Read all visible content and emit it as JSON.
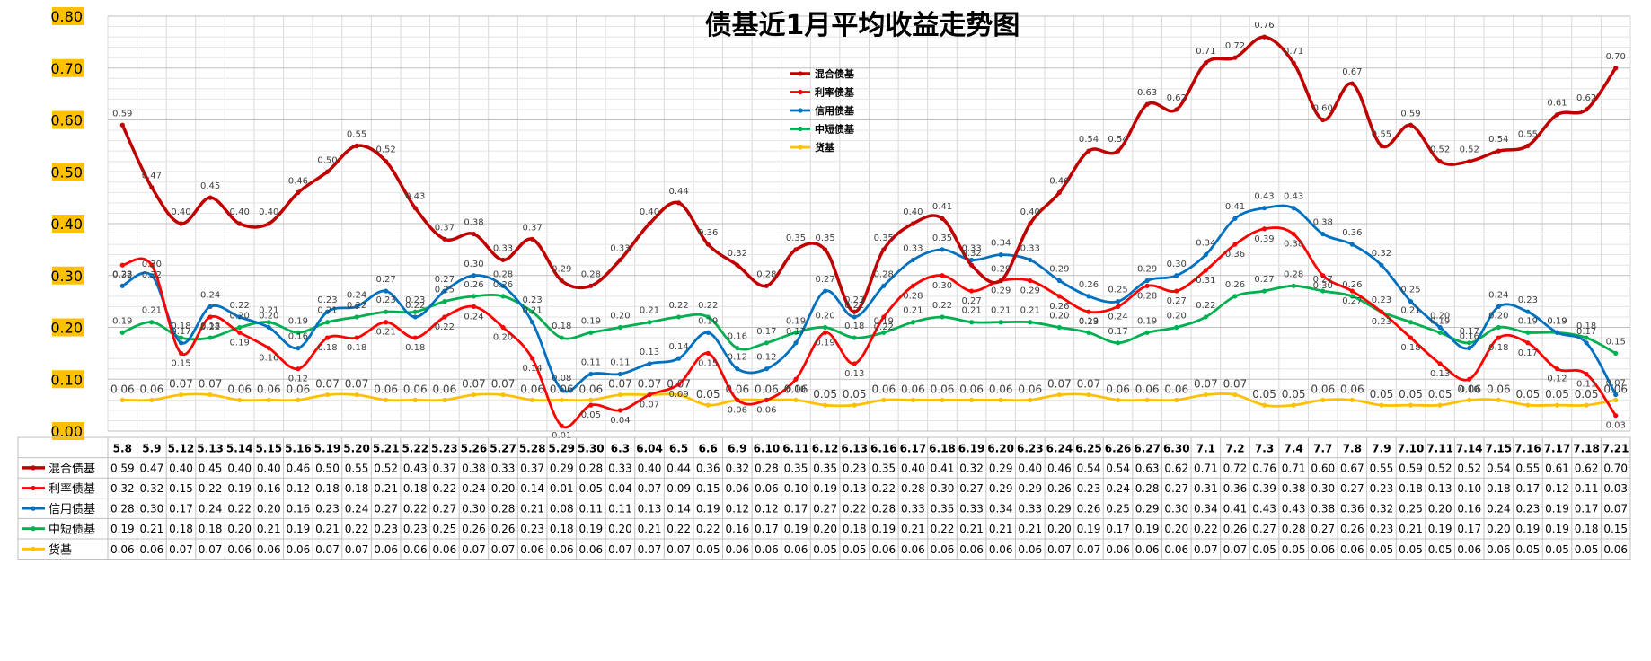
{
  "chart_data": {
    "type": "line",
    "title": "债基近1月平均收益走势图",
    "xlabel": "",
    "ylabel": "",
    "ylim": [
      0,
      0.8
    ],
    "yticks": [
      "0.00",
      "0.10",
      "0.20",
      "0.30",
      "0.40",
      "0.50",
      "0.60",
      "0.70",
      "0.80"
    ],
    "grid": true,
    "legend_position": "top-center",
    "data_table": true,
    "categories": [
      "5.8",
      "5.9",
      "5.12",
      "5.13",
      "5.14",
      "5.15",
      "5.16",
      "5.19",
      "5.20",
      "5.21",
      "5.22",
      "5.23",
      "5.26",
      "5.27",
      "5.28",
      "5.29",
      "5.30",
      "6.3",
      "6.04",
      "6.5",
      "6.6",
      "6.9",
      "6.10",
      "6.11",
      "6.12",
      "6.13",
      "6.16",
      "6.17",
      "6.18",
      "6.19",
      "6.20",
      "6.23",
      "6.24",
      "6.25",
      "6.26",
      "6.27",
      "6.30",
      "7.1",
      "7.2",
      "7.3",
      "7.4",
      "7.7",
      "7.8",
      "7.9",
      "7.10",
      "7.11",
      "7.14",
      "7.15",
      "7.16",
      "7.17",
      "7.18",
      "7.21"
    ],
    "series": [
      {
        "name": "混合债基",
        "color": "#c00000",
        "values": [
          0.59,
          0.47,
          0.4,
          0.45,
          0.4,
          0.4,
          0.46,
          0.5,
          0.55,
          0.52,
          0.43,
          0.37,
          0.38,
          0.33,
          0.37,
          0.29,
          0.28,
          0.33,
          0.4,
          0.44,
          0.36,
          0.32,
          0.28,
          0.35,
          0.35,
          0.23,
          0.35,
          0.4,
          0.41,
          0.32,
          0.29,
          0.4,
          0.46,
          0.54,
          0.54,
          0.63,
          0.62,
          0.71,
          0.72,
          0.76,
          0.71,
          0.6,
          0.67,
          0.55,
          0.59,
          0.52,
          0.52,
          0.54,
          0.55,
          0.61,
          0.62,
          0.7
        ]
      },
      {
        "name": "利率债基",
        "color": "#ff0000",
        "values": [
          0.32,
          0.32,
          0.15,
          0.22,
          0.19,
          0.16,
          0.12,
          0.18,
          0.18,
          0.21,
          0.18,
          0.22,
          0.24,
          0.2,
          0.14,
          0.01,
          0.05,
          0.04,
          0.07,
          0.09,
          0.15,
          0.06,
          0.06,
          0.1,
          0.19,
          0.13,
          0.22,
          0.28,
          0.3,
          0.27,
          0.29,
          0.29,
          0.26,
          0.23,
          0.24,
          0.28,
          0.27,
          0.31,
          0.36,
          0.39,
          0.38,
          0.3,
          0.27,
          0.23,
          0.18,
          0.13,
          0.1,
          0.18,
          0.17,
          0.12,
          0.11,
          0.03
        ]
      },
      {
        "name": "信用债基",
        "color": "#0070c0",
        "values": [
          0.28,
          0.3,
          0.17,
          0.24,
          0.22,
          0.2,
          0.16,
          0.23,
          0.24,
          0.27,
          0.22,
          0.27,
          0.3,
          0.28,
          0.21,
          0.08,
          0.11,
          0.11,
          0.13,
          0.14,
          0.19,
          0.12,
          0.12,
          0.17,
          0.27,
          0.22,
          0.28,
          0.33,
          0.35,
          0.33,
          0.34,
          0.33,
          0.29,
          0.26,
          0.25,
          0.29,
          0.3,
          0.34,
          0.41,
          0.43,
          0.43,
          0.38,
          0.36,
          0.32,
          0.25,
          0.2,
          0.16,
          0.24,
          0.23,
          0.19,
          0.17,
          0.07
        ]
      },
      {
        "name": "中短债基",
        "color": "#00b050",
        "values": [
          0.19,
          0.21,
          0.18,
          0.18,
          0.2,
          0.21,
          0.19,
          0.21,
          0.22,
          0.23,
          0.23,
          0.25,
          0.26,
          0.26,
          0.23,
          0.18,
          0.19,
          0.2,
          0.21,
          0.22,
          0.22,
          0.16,
          0.17,
          0.19,
          0.2,
          0.18,
          0.19,
          0.21,
          0.22,
          0.21,
          0.21,
          0.21,
          0.2,
          0.19,
          0.17,
          0.19,
          0.2,
          0.22,
          0.26,
          0.27,
          0.28,
          0.27,
          0.26,
          0.23,
          0.21,
          0.19,
          0.17,
          0.2,
          0.19,
          0.19,
          0.18,
          0.15
        ]
      },
      {
        "name": "货基",
        "color": "#ffc000",
        "values": [
          0.06,
          0.06,
          0.07,
          0.07,
          0.06,
          0.06,
          0.06,
          0.07,
          0.07,
          0.06,
          0.06,
          0.06,
          0.07,
          0.07,
          0.06,
          0.06,
          0.06,
          0.07,
          0.07,
          0.07,
          0.05,
          0.06,
          0.06,
          0.06,
          0.05,
          0.05,
          0.06,
          0.06,
          0.06,
          0.06,
          0.06,
          0.06,
          0.07,
          0.07,
          0.06,
          0.06,
          0.06,
          0.07,
          0.07,
          0.05,
          0.05,
          0.06,
          0.06,
          0.05,
          0.05,
          0.05,
          0.06,
          0.06,
          0.05,
          0.05,
          0.05,
          0.06
        ]
      }
    ]
  }
}
